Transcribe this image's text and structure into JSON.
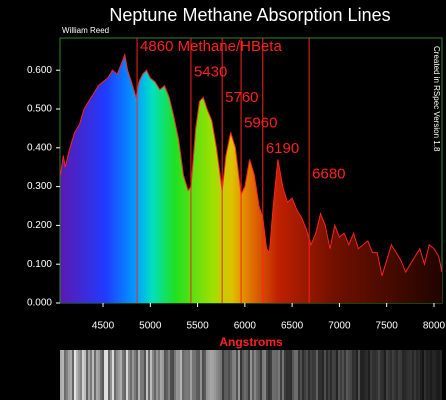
{
  "chart_data": {
    "type": "line",
    "title": "Neptune Methane Absorption Lines",
    "author": "William Reed",
    "side_note": "Created in RSpec Version 1.8",
    "xlabel": "Angstroms",
    "x": [
      4050,
      4080,
      4100,
      4150,
      4200,
      4250,
      4300,
      4350,
      4400,
      4450,
      4500,
      4550,
      4600,
      4650,
      4700,
      4730,
      4760,
      4800,
      4850,
      4880,
      4920,
      4960,
      5000,
      5050,
      5100,
      5150,
      5200,
      5250,
      5300,
      5350,
      5400,
      5430,
      5480,
      5520,
      5560,
      5600,
      5650,
      5700,
      5760,
      5800,
      5850,
      5900,
      5960,
      6000,
      6050,
      6100,
      6150,
      6190,
      6230,
      6260,
      6300,
      6350,
      6400,
      6450,
      6500,
      6550,
      6600,
      6650,
      6700,
      6750,
      6800,
      6850,
      6900,
      6950,
      7000,
      7050,
      7100,
      7150,
      7200,
      7300,
      7350,
      7400,
      7450,
      7500,
      7550,
      7600,
      7650,
      7700,
      7750,
      7800,
      7850,
      7900,
      7950,
      8000,
      8050,
      8085
    ],
    "series": [
      {
        "name": "Neptune",
        "color": "#ff2020",
        "values": [
          0.33,
          0.38,
          0.35,
          0.4,
          0.44,
          0.46,
          0.5,
          0.52,
          0.54,
          0.56,
          0.57,
          0.58,
          0.6,
          0.59,
          0.62,
          0.64,
          0.6,
          0.57,
          0.53,
          0.57,
          0.59,
          0.6,
          0.58,
          0.57,
          0.55,
          0.56,
          0.53,
          0.48,
          0.42,
          0.33,
          0.29,
          0.3,
          0.45,
          0.52,
          0.53,
          0.5,
          0.47,
          0.4,
          0.29,
          0.38,
          0.44,
          0.4,
          0.28,
          0.3,
          0.37,
          0.33,
          0.25,
          0.22,
          0.14,
          0.13,
          0.25,
          0.37,
          0.3,
          0.26,
          0.27,
          0.24,
          0.22,
          0.19,
          0.15,
          0.18,
          0.23,
          0.2,
          0.14,
          0.2,
          0.17,
          0.18,
          0.15,
          0.18,
          0.14,
          0.16,
          0.13,
          0.13,
          0.07,
          0.11,
          0.15,
          0.13,
          0.11,
          0.08,
          0.1,
          0.12,
          0.14,
          0.1,
          0.15,
          0.14,
          0.12,
          0.08
        ]
      }
    ],
    "annotations": [
      {
        "value": 4860,
        "label": "4860 Methane/HBeta"
      },
      5430,
      5760,
      5960,
      6190,
      6680
    ],
    "xlim": [
      4045,
      8085
    ],
    "ylim": [
      0,
      0.683
    ],
    "xticks": [
      4500,
      5000,
      5500,
      6000,
      6500,
      7000,
      7500,
      8000
    ],
    "yticks": [
      {
        "value": 0,
        "label": "0.000"
      },
      {
        "value": 0.1,
        "label": "0.100"
      },
      {
        "value": 0.2,
        "label": "0.200"
      },
      {
        "value": 0.3,
        "label": "0.300"
      },
      {
        "value": 0.4,
        "label": "0.400"
      },
      {
        "value": 0.5,
        "label": "0.500"
      },
      {
        "value": 0.6,
        "label": "0.600"
      }
    ]
  }
}
